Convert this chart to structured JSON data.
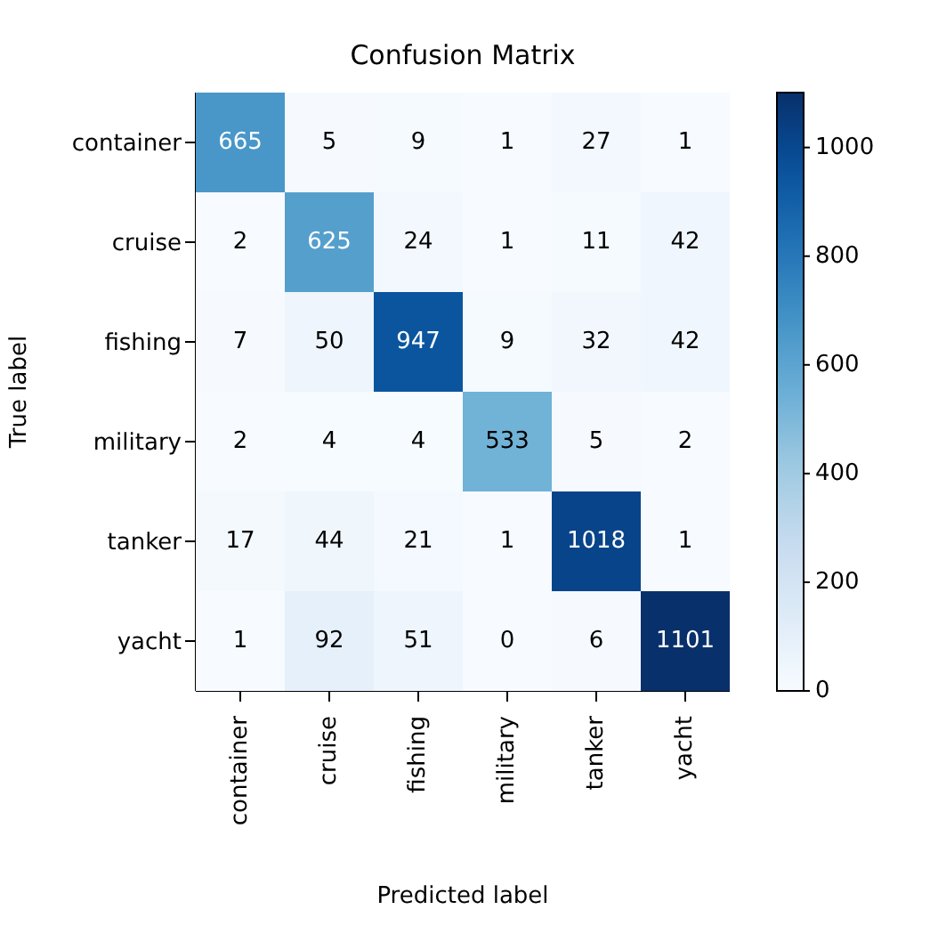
{
  "chart_data": {
    "type": "heatmap",
    "title": "Confusion Matrix",
    "xlabel": "Predicted label",
    "ylabel": "True label",
    "categories": [
      "container",
      "cruise",
      "fishing",
      "military",
      "tanker",
      "yacht"
    ],
    "y_categories": [
      "container",
      "cruise",
      "fishing",
      "military",
      "tanker",
      "yacht"
    ],
    "cells": [
      [
        665,
        5,
        9,
        1,
        27,
        1
      ],
      [
        2,
        625,
        24,
        1,
        11,
        42
      ],
      [
        7,
        50,
        947,
        9,
        32,
        42
      ],
      [
        2,
        4,
        4,
        533,
        5,
        2
      ],
      [
        17,
        44,
        21,
        1,
        1018,
        1
      ],
      [
        1,
        92,
        51,
        0,
        6,
        1101
      ]
    ],
    "clim": [
      0,
      1101
    ],
    "cticks": [
      0,
      200,
      400,
      600,
      800,
      1000
    ],
    "data_labels": true
  }
}
